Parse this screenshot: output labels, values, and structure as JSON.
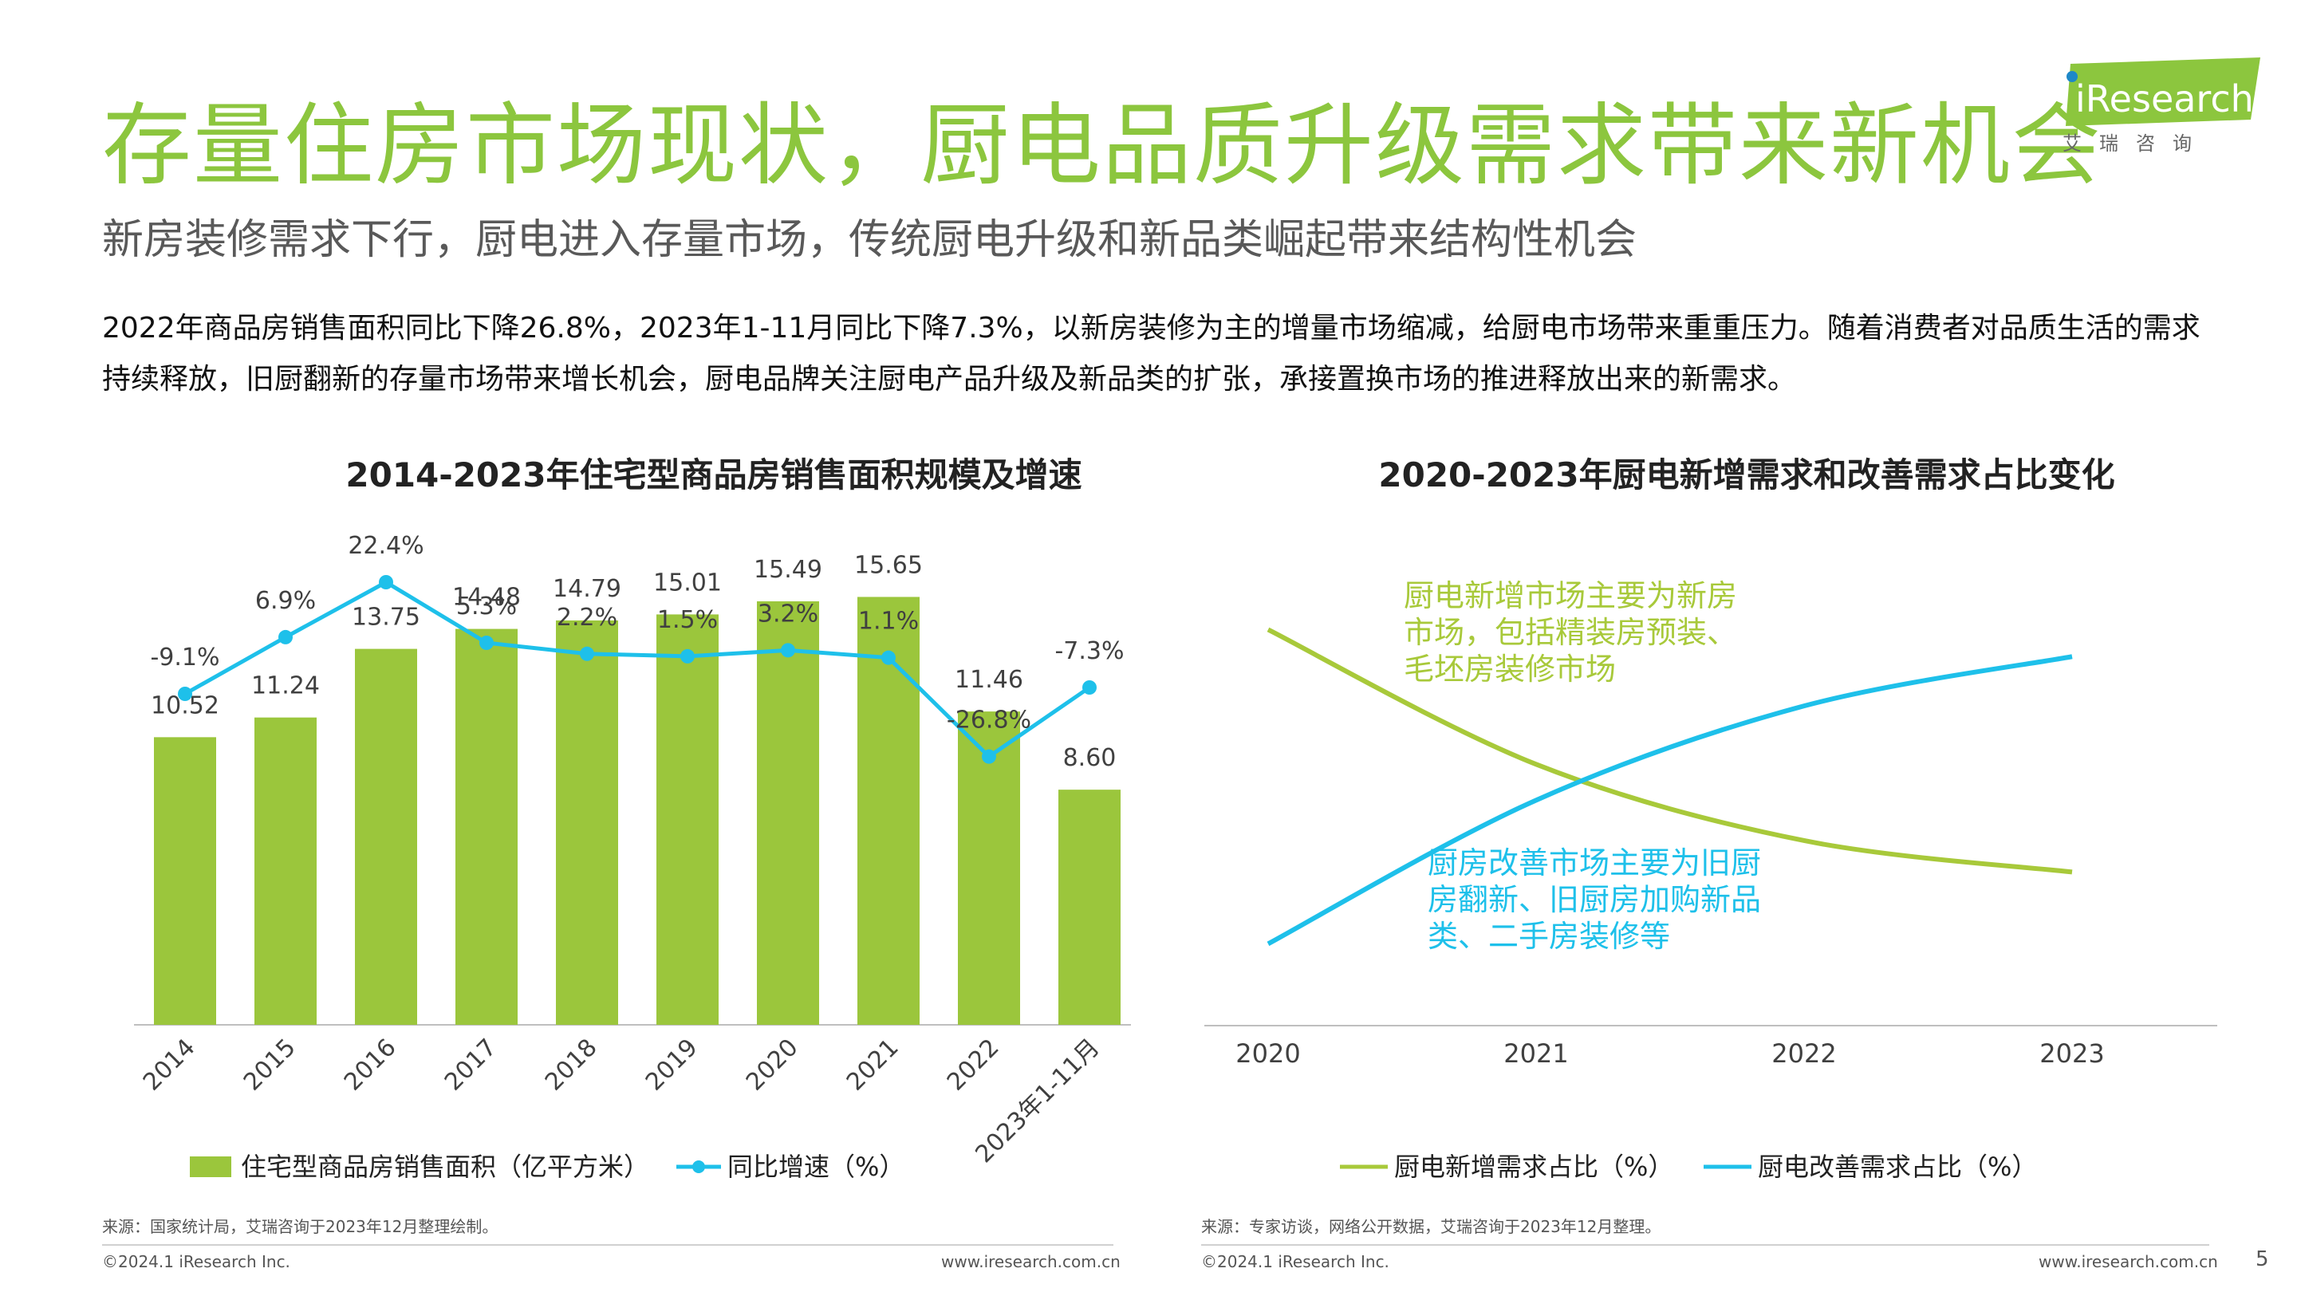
{
  "header": {
    "title": "存量住房市场现状，厨电品质升级需求带来新机会",
    "subtitle": "新房装修需求下行，厨电进入存量市场，传统厨电升级和新品类崛起带来结构性机会",
    "body": "2022年商品房销售面积同比下降26.8%，2023年1-11月同比下降7.3%，以新房装修为主的增量市场缩减，给厨电市场带来重重压力。随着消费者对品质生活的需求持续释放，旧厨翻新的存量市场带来增长机会，厨电品牌关注厨电产品升级及新品类的扩张，承接置换市场的推进释放出来的新需求。",
    "logo_text": "iResearch",
    "logo_cn": "艾瑞咨询",
    "brand_color": "#8cc63e"
  },
  "chart_data": [
    {
      "type": "bar",
      "title": "2014-2023年住宅型商品房销售面积规模及增速",
      "categories": [
        "2014",
        "2015",
        "2016",
        "2017",
        "2018",
        "2019",
        "2020",
        "2021",
        "2022",
        "2023年1-11月"
      ],
      "series": [
        {
          "name": "住宅型商品房销售面积（亿平方米）",
          "type": "bar",
          "color": "#9bc63c",
          "values": [
            10.52,
            11.24,
            13.75,
            14.48,
            14.79,
            15.01,
            15.49,
            15.65,
            11.46,
            8.6
          ],
          "labels": [
            "10.52",
            "11.24",
            "13.75",
            "14.48",
            "14.79",
            "15.01",
            "15.49",
            "15.65",
            "11.46",
            "8.60"
          ]
        },
        {
          "name": "同比增速（%）",
          "type": "line",
          "color": "#1ec0ea",
          "values": [
            -9.1,
            6.9,
            22.4,
            5.3,
            2.2,
            1.5,
            3.2,
            1.1,
            -26.8,
            -7.3
          ],
          "labels": [
            "-9.1%",
            "6.9%",
            "22.4%",
            "5.3%",
            "2.2%",
            "1.5%",
            "3.2%",
            "1.1%",
            "-26.8%",
            "-7.3%"
          ]
        }
      ],
      "bar_ylim": [
        0,
        18
      ],
      "line_ylim": [
        -50,
        30
      ],
      "legend_position": "bottom",
      "grid": false,
      "source": "来源：国家统计局，艾瑞咨询于2023年12月整理绘制。"
    },
    {
      "type": "line",
      "title": "2020-2023年厨电新增需求和改善需求占比变化",
      "x": [
        "2020",
        "2021",
        "2022",
        "2023"
      ],
      "series": [
        {
          "name": "厨电新增需求占比（%）",
          "color": "#a8c93a",
          "values": [
            90,
            60,
            43,
            36
          ]
        },
        {
          "name": "厨电改善需求占比（%）",
          "color": "#1ec0ea",
          "values": [
            20,
            52,
            73,
            84
          ]
        }
      ],
      "ylim": [
        0,
        100
      ],
      "annotations": [
        {
          "text": "厨电新增市场主要为新房\n市场，包括精装房预装、\n毛坯房装修市场",
          "series": 0
        },
        {
          "text": "厨房改善市场主要为旧厨\n房翻新、旧厨房加购新品\n类、二手房装修等",
          "series": 1
        }
      ],
      "legend_position": "bottom",
      "grid": false,
      "source": "来源：专家访谈，网络公开数据，艾瑞咨询于2023年12月整理。"
    }
  ],
  "footer": {
    "copyright_left": "©2024.1 iResearch Inc.",
    "url_left": "www.iresearch.com.cn",
    "copyright_right": "©2024.1 iResearch Inc.",
    "url_right": "www.iresearch.com.cn",
    "page_number": "5"
  }
}
